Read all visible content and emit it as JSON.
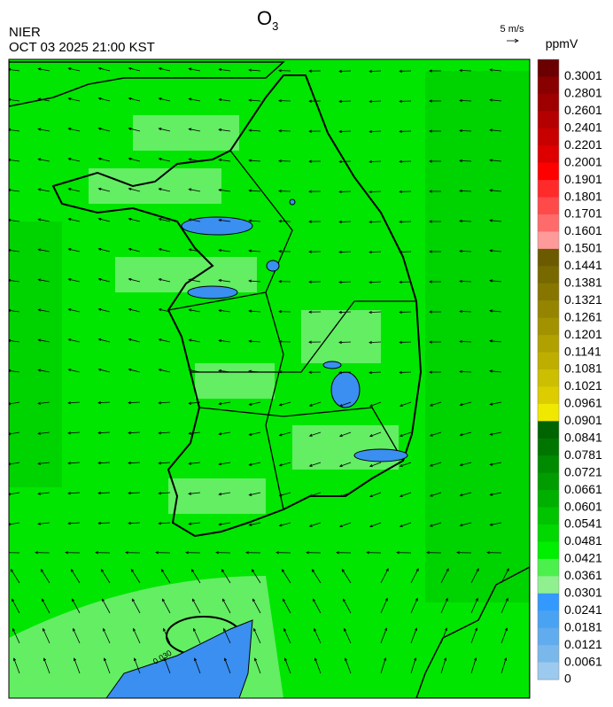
{
  "header": {
    "title": {
      "main": "O",
      "sub": "3"
    },
    "agency": "NIER",
    "datetime": "OCT 03 2025 21:00 KST",
    "vector_scale": "5 m/s",
    "contour_label": "0.030"
  },
  "colorbar": {
    "unit": "ppmV",
    "levels": [
      0.3001,
      0.2801,
      0.2601,
      0.2401,
      0.2201,
      0.2001,
      0.1901,
      0.1801,
      0.1701,
      0.1601,
      0.1501,
      0.1441,
      0.1381,
      0.1321,
      0.1261,
      0.1201,
      0.1141,
      0.1081,
      0.1021,
      0.0961,
      0.0901,
      0.0841,
      0.0781,
      0.0721,
      0.0661,
      0.0601,
      0.0541,
      0.0481,
      0.0421,
      0.0361,
      0.0301,
      0.0241,
      0.0181,
      0.0121,
      0.0061,
      0
    ],
    "colors": [
      "#6a0000",
      "#880000",
      "#9e0000",
      "#b40000",
      "#c80000",
      "#de0000",
      "#ff0000",
      "#ff2a2a",
      "#ff4a4a",
      "#ff6a6a",
      "#ff9a9a",
      "#6b5a00",
      "#786800",
      "#867600",
      "#948400",
      "#a29200",
      "#b0a000",
      "#beae00",
      "#ccbe00",
      "#dccc00",
      "#f0e800",
      "#006400",
      "#007600",
      "#008a00",
      "#009c00",
      "#00b000",
      "#00c400",
      "#00d800",
      "#00ee00",
      "#4cf04c",
      "#90f090",
      "#3399ff",
      "#4aa2f2",
      "#60acee",
      "#7ab8ec",
      "#9ccaee"
    ]
  }
}
